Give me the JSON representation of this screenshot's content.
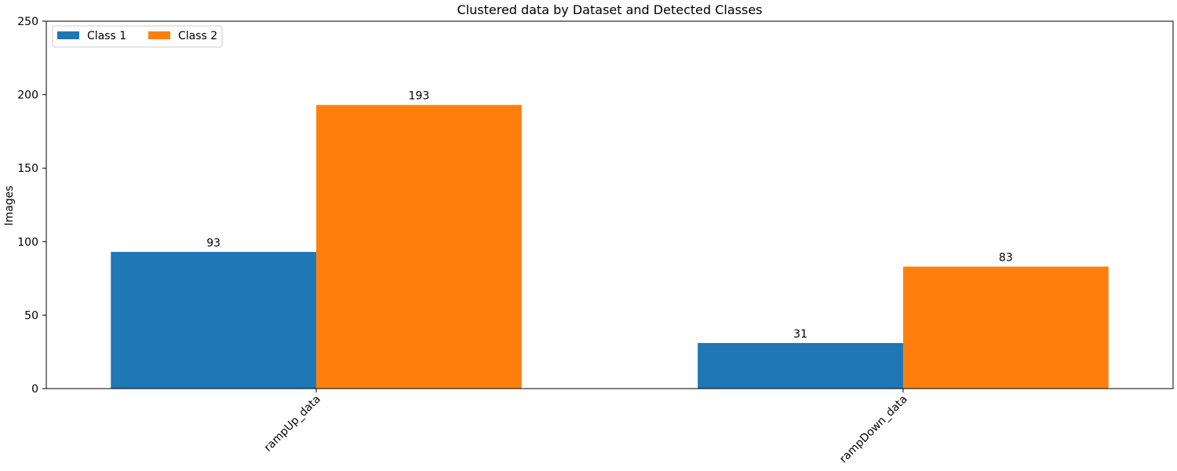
{
  "chart_data": {
    "type": "bar",
    "title": "Clustered data by Dataset and Detected Classes",
    "xlabel": "",
    "ylabel": "Images",
    "categories": [
      "rampUp_data",
      "rampDown_data"
    ],
    "series": [
      {
        "name": "Class 1",
        "values": [
          93,
          31
        ],
        "color": "#1f77b4"
      },
      {
        "name": "Class 2",
        "values": [
          193,
          83
        ],
        "color": "#ff7f0e"
      }
    ],
    "ylim": [
      0,
      250
    ],
    "yticks": [
      0,
      50,
      100,
      150,
      200,
      250
    ],
    "grid": false,
    "legend_position": "top-left",
    "legend_columns": 2,
    "xtick_rotation": 45,
    "data_labels": true
  }
}
